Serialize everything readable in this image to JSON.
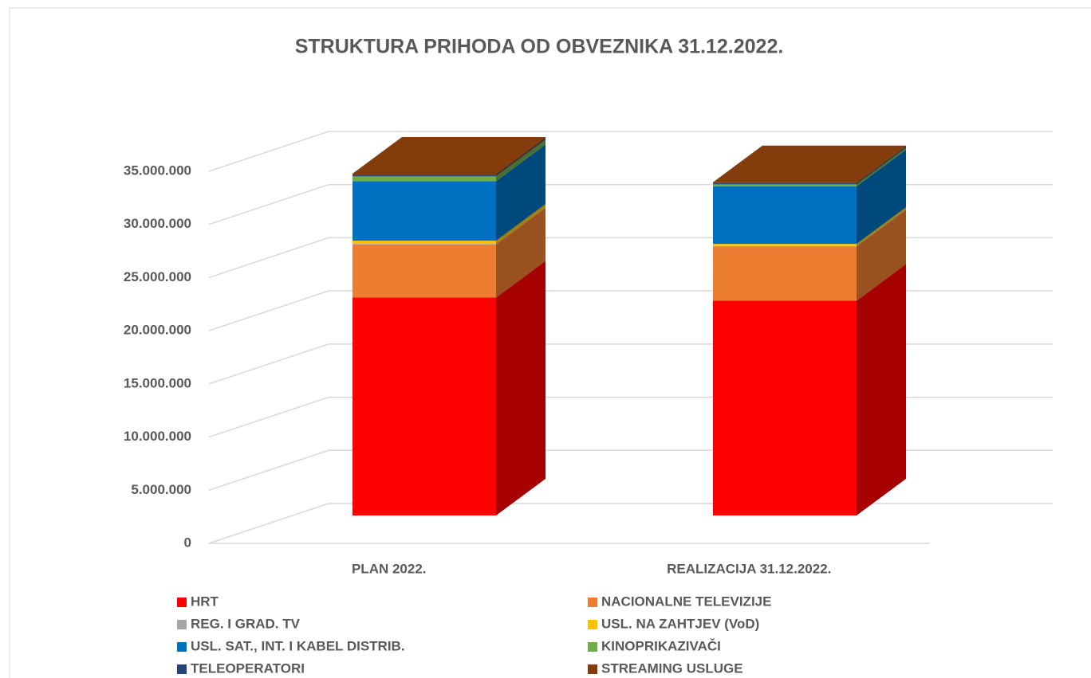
{
  "chart_data": {
    "type": "bar3d-stacked",
    "title": "STRUKTURA PRIHODA OD OBVEZNIKA 31.12.2022.",
    "categories": [
      "PLAN 2022.",
      "REALIZACIJA 31.12.2022."
    ],
    "series": [
      {
        "name": "HRT",
        "color": "#ff0000",
        "values": [
          20500000,
          20200000
        ]
      },
      {
        "name": "NACIONALNE TELEVIZIJE",
        "color": "#ed7d31",
        "values": [
          5000000,
          5100000
        ]
      },
      {
        "name": "REG. I GRAD. TV",
        "color": "#a5a5a5",
        "values": [
          50000,
          50000
        ]
      },
      {
        "name": "USL. NA ZAHTJEV (VoD)",
        "color": "#ffc000",
        "values": [
          300000,
          200000
        ]
      },
      {
        "name": "USL. SAT., INT. I KABEL DISTRIB.",
        "color": "#0070c0",
        "values": [
          5600000,
          5400000
        ]
      },
      {
        "name": "KINOPRIKAZIVAČI",
        "color": "#70ad47",
        "values": [
          450000,
          200000
        ]
      },
      {
        "name": "TELEOPERATORI",
        "color": "#264478",
        "values": [
          100000,
          100000
        ]
      },
      {
        "name": "STREAMING USLUGE",
        "color": "#843c0c",
        "values": [
          150000,
          100000
        ]
      }
    ],
    "ylim": [
      0,
      40000000
    ],
    "yticks": [
      0,
      {
        "value": 5000000,
        "label": "5.000.000"
      },
      {
        "value": 10000000,
        "label": "10.000.000"
      },
      {
        "value": 15000000,
        "label": "15.000.000"
      },
      {
        "value": 20000000,
        "label": "20.000.000"
      },
      {
        "value": 25000000,
        "label": "25.000.000"
      },
      {
        "value": 30000000,
        "label": "30.000.000"
      },
      {
        "value": 35000000,
        "label": "35.000.000"
      }
    ],
    "grid": true,
    "legend": "bottom"
  }
}
